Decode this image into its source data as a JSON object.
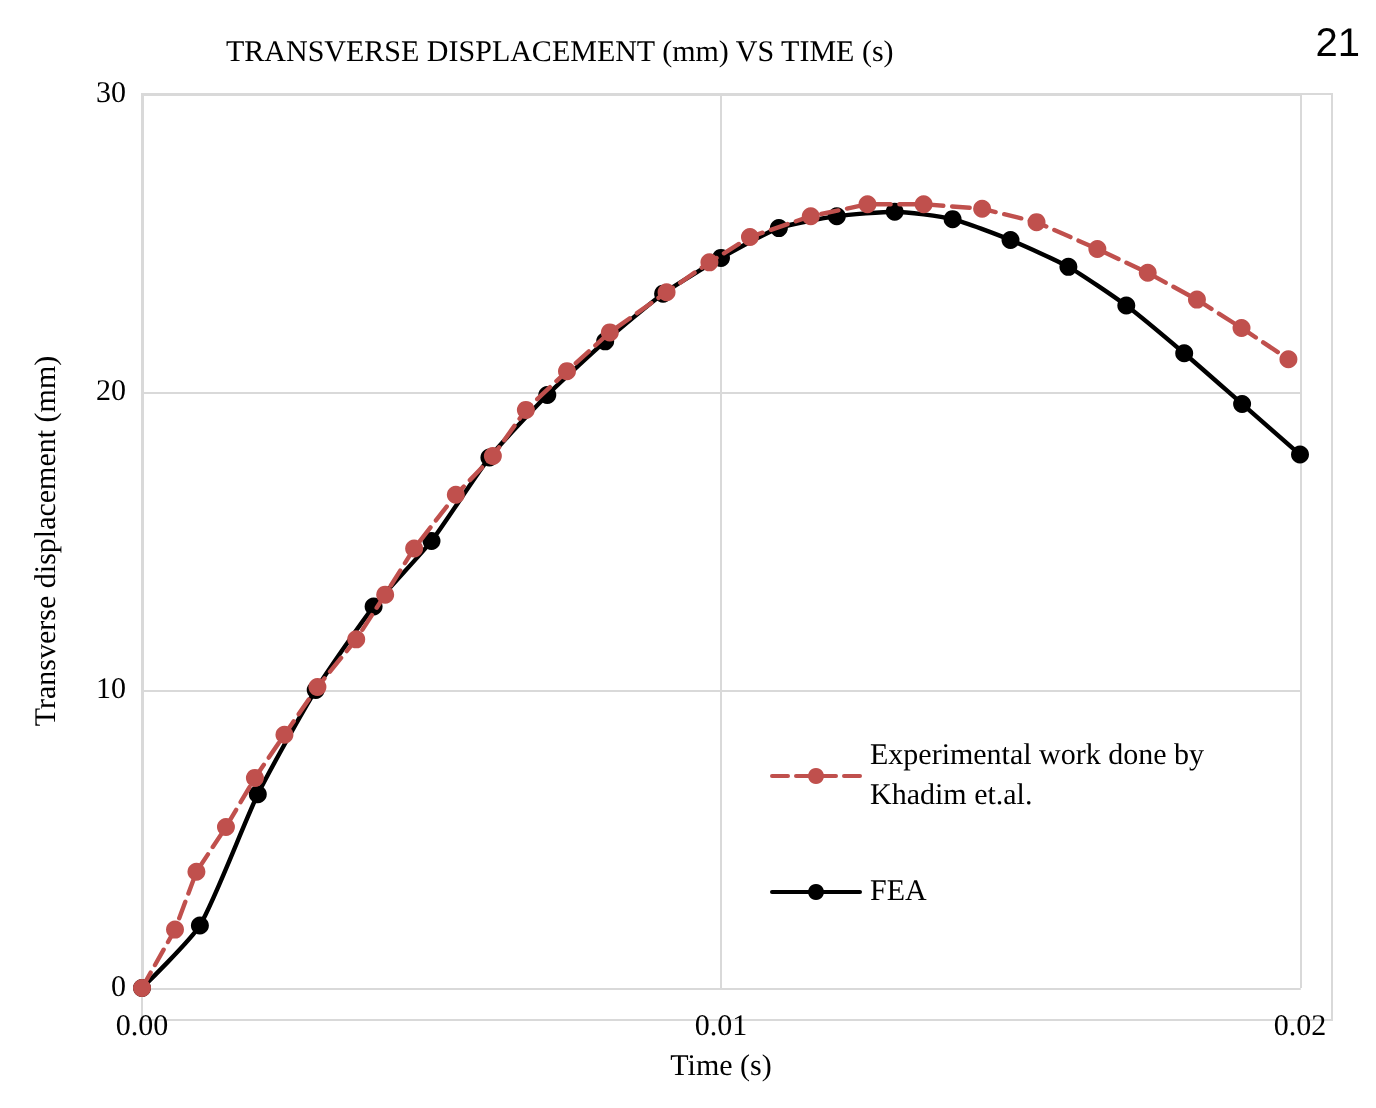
{
  "chart_data": {
    "type": "line",
    "title": "TRANSVERSE DISPLACEMENT (mm) VS TIME (s)",
    "xlabel": "Time (s)",
    "ylabel": "Transverse displacement (mm)",
    "annotations": [
      "21"
    ],
    "xlim": [
      0,
      0.02
    ],
    "xticks": [
      {
        "value": 0,
        "label": "0.00"
      },
      0.01,
      0.02
    ],
    "ylim": [
      0,
      30
    ],
    "yticks": [
      0,
      10,
      20,
      30
    ],
    "grid": true,
    "legend": "right",
    "marker": "circle",
    "series": [
      {
        "name": "Experimental work done by Khadim et.al.",
        "color": "#c0504d",
        "line_style": "dashed",
        "x": [
          0,
          0.00057,
          0.00094,
          0.00145,
          0.00195,
          0.00246,
          0.00303,
          0.0037,
          0.0042,
          0.0047,
          0.00542,
          0.00606,
          0.00663,
          0.00734,
          0.00808,
          0.00906,
          0.0098,
          0.0105,
          0.01155,
          0.01253,
          0.0135,
          0.01451,
          0.01545,
          0.0165,
          0.01737,
          0.01822,
          0.01899,
          0.0198
        ],
        "values": [
          0,
          1.96,
          3.9,
          5.4,
          7.05,
          8.5,
          10.1,
          11.7,
          13.2,
          14.75,
          16.55,
          17.85,
          19.4,
          20.7,
          22.0,
          23.35,
          24.35,
          25.2,
          25.9,
          26.3,
          26.3,
          26.15,
          25.7,
          24.8,
          24.0,
          23.1,
          22.15,
          21.1
        ]
      },
      {
        "name": "FEA",
        "color": "#000000",
        "line_style": "solid",
        "x": [
          0,
          0.001,
          0.002,
          0.003,
          0.004,
          0.005,
          0.006,
          0.007,
          0.008,
          0.009,
          0.01,
          0.011,
          0.012,
          0.013,
          0.014,
          0.015,
          0.016,
          0.017,
          0.018,
          0.019,
          0.02
        ],
        "values": [
          0,
          2.1,
          6.5,
          10.0,
          12.8,
          15.0,
          17.8,
          19.9,
          21.7,
          23.3,
          24.5,
          25.5,
          25.9,
          26.05,
          25.8,
          25.1,
          24.2,
          22.9,
          21.3,
          19.6,
          17.9
        ]
      }
    ]
  }
}
